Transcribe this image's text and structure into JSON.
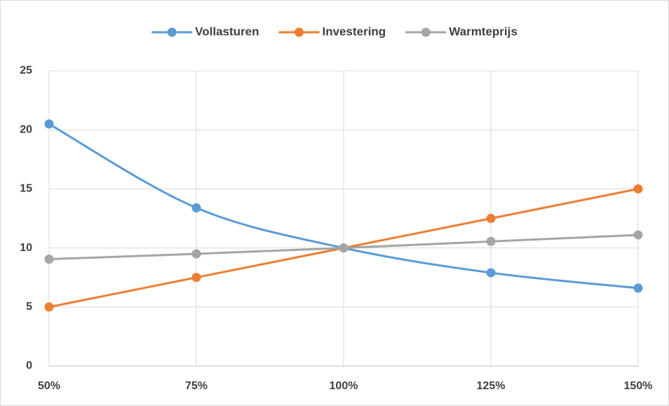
{
  "chart_data": {
    "type": "line",
    "categories": [
      "50%",
      "75%",
      "100%",
      "125%",
      "150%"
    ],
    "series": [
      {
        "name": "Vollasturen",
        "color": "#5b9bd5",
        "values": [
          20.5,
          13.4,
          10,
          7.9,
          6.6
        ]
      },
      {
        "name": "Investering",
        "color": "#ed7d31",
        "values": [
          5,
          7.5,
          10,
          12.5,
          15
        ]
      },
      {
        "name": "Warmteprijs",
        "color": "#a5a5a5",
        "values": [
          9.05,
          9.5,
          10,
          10.55,
          11.1
        ]
      }
    ],
    "ylim": [
      0,
      25
    ],
    "yticks": [
      0,
      5,
      10,
      15,
      20,
      25
    ],
    "grid": true,
    "smooth": true,
    "legend": "top"
  }
}
